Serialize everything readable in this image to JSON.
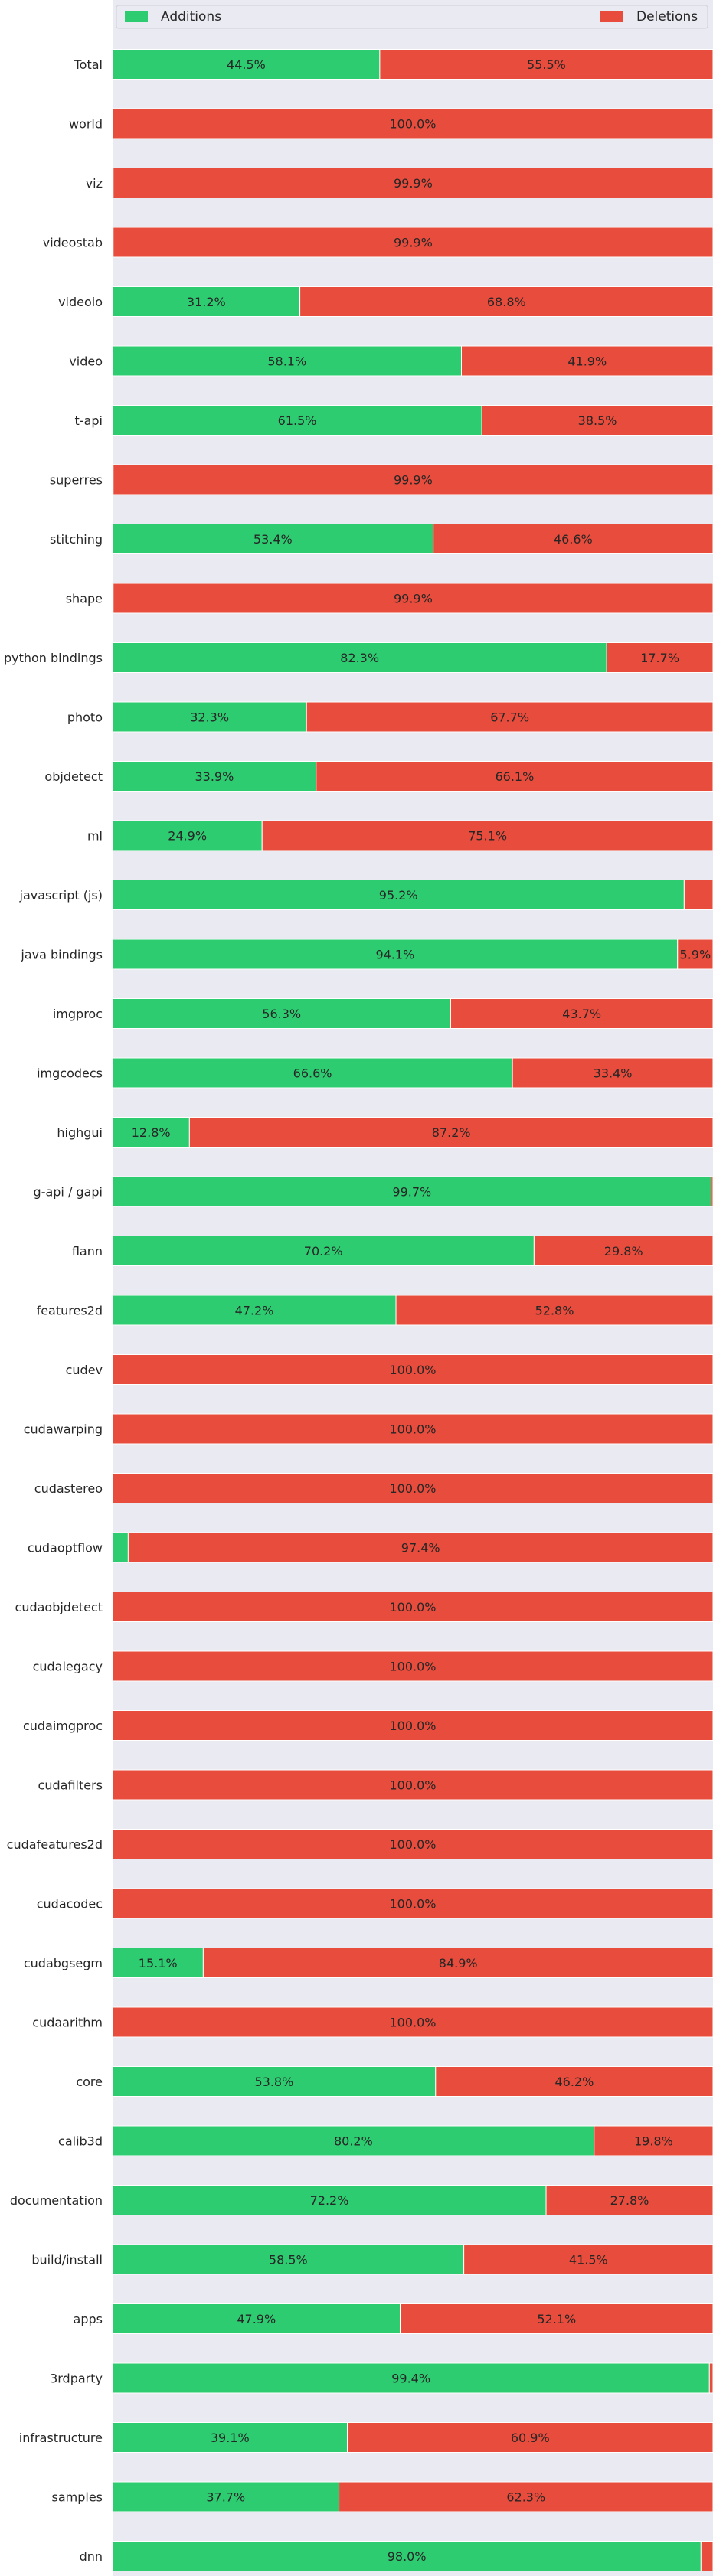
{
  "chart_data": {
    "type": "bar",
    "orientation": "horizontal",
    "stacked": true,
    "percent": true,
    "grid": false,
    "legend_position": "top",
    "xlim": [
      0,
      100
    ],
    "colors": {
      "Additions": "#2ecc71",
      "Deletions": "#e74c3c",
      "background": "#eaeaf2"
    },
    "categories": [
      "Total",
      "world",
      "viz",
      "videostab",
      "videoio",
      "video",
      "t-api",
      "superres",
      "stitching",
      "shape",
      "python bindings",
      "photo",
      "objdetect",
      "ml",
      "javascript (js)",
      "java bindings",
      "imgproc",
      "imgcodecs",
      "highgui",
      "g-api / gapi",
      "flann",
      "features2d",
      "cudev",
      "cudawarping",
      "cudastereo",
      "cudaoptflow",
      "cudaobjdetect",
      "cudalegacy",
      "cudaimgproc",
      "cudafilters",
      "cudafeatures2d",
      "cudacodec",
      "cudabgsegm",
      "cudaarithm",
      "core",
      "calib3d",
      "documentation",
      "build/install",
      "apps",
      "3rdparty",
      "infrastructure",
      "samples",
      "dnn"
    ],
    "series": [
      {
        "name": "Additions",
        "values": [
          44.5,
          0.0,
          0.1,
          0.1,
          31.2,
          58.1,
          61.5,
          0.1,
          53.4,
          0.1,
          82.3,
          32.3,
          33.9,
          24.9,
          95.2,
          94.1,
          56.3,
          66.6,
          12.8,
          99.7,
          70.2,
          47.2,
          0.0,
          0.0,
          0.0,
          2.6,
          0.0,
          0.0,
          0.0,
          0.0,
          0.0,
          0.0,
          15.1,
          0.0,
          53.8,
          80.2,
          72.2,
          58.5,
          47.9,
          99.4,
          39.1,
          37.7,
          98.0
        ],
        "labels": [
          "44.5%",
          "",
          "",
          "",
          "31.2%",
          "58.1%",
          "61.5%",
          "",
          "53.4%",
          "",
          "82.3%",
          "32.3%",
          "33.9%",
          "24.9%",
          "95.2%",
          "94.1%",
          "56.3%",
          "66.6%",
          "12.8%",
          "99.7%",
          "70.2%",
          "47.2%",
          "",
          "",
          "",
          "",
          "",
          "",
          "",
          "",
          "",
          "",
          "15.1%",
          "",
          "53.8%",
          "80.2%",
          "72.2%",
          "58.5%",
          "47.9%",
          "99.4%",
          "39.1%",
          "37.7%",
          "98.0%"
        ]
      },
      {
        "name": "Deletions",
        "values": [
          55.5,
          100.0,
          99.9,
          99.9,
          68.8,
          41.9,
          38.5,
          99.9,
          46.6,
          99.9,
          17.7,
          67.7,
          66.1,
          75.1,
          4.8,
          5.9,
          43.7,
          33.4,
          87.2,
          0.3,
          29.8,
          52.8,
          100.0,
          100.0,
          100.0,
          97.4,
          100.0,
          100.0,
          100.0,
          100.0,
          100.0,
          100.0,
          84.9,
          100.0,
          46.2,
          19.8,
          27.8,
          41.5,
          52.1,
          0.6,
          60.9,
          62.3,
          2.0
        ],
        "labels": [
          "55.5%",
          "100.0%",
          "99.9%",
          "99.9%",
          "68.8%",
          "41.9%",
          "38.5%",
          "99.9%",
          "46.6%",
          "99.9%",
          "17.7%",
          "67.7%",
          "66.1%",
          "75.1%",
          "",
          "5.9%",
          "43.7%",
          "33.4%",
          "87.2%",
          "",
          "29.8%",
          "52.8%",
          "100.0%",
          "100.0%",
          "100.0%",
          "97.4%",
          "100.0%",
          "100.0%",
          "100.0%",
          "100.0%",
          "100.0%",
          "100.0%",
          "84.9%",
          "100.0%",
          "46.2%",
          "19.8%",
          "27.8%",
          "41.5%",
          "52.1%",
          "",
          "60.9%",
          "62.3%",
          ""
        ]
      }
    ]
  }
}
